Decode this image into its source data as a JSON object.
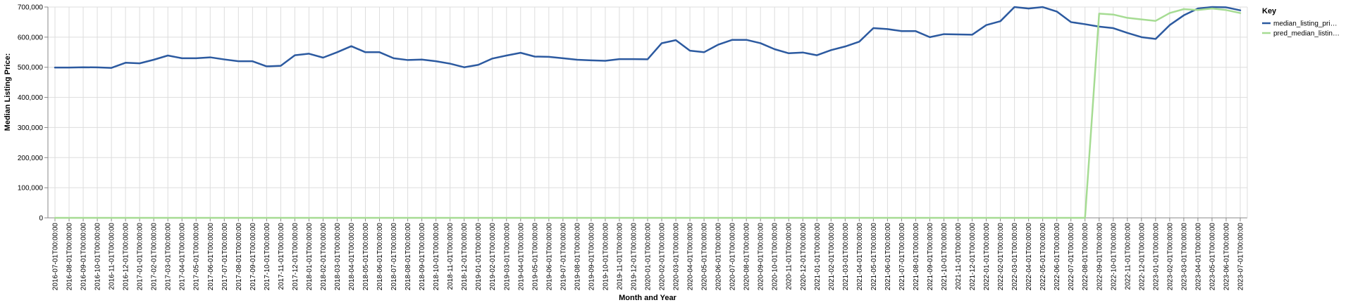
{
  "chart_data": {
    "type": "line",
    "xlabel": "Month and Year",
    "ylabel": "Median Listing Price:",
    "ylim": [
      0,
      700000
    ],
    "y_ticks": [
      "0",
      "100,000",
      "200,000",
      "300,000",
      "400,000",
      "500,000",
      "600,000",
      "700,000"
    ],
    "y_tick_values": [
      0,
      100000,
      200000,
      300000,
      400000,
      500000,
      600000,
      700000
    ],
    "grid": true,
    "legend": {
      "title": "Key",
      "placement": "top-right",
      "items": [
        {
          "label": "median_listing_pri…",
          "color": "#2c5aa0"
        },
        {
          "label": "pred_median_listin…",
          "color": "#a6dc93"
        }
      ]
    },
    "x": [
      "2016-07-01T00:00:00",
      "2016-08-01T00:00:00",
      "2016-09-01T00:00:00",
      "2016-10-01T00:00:00",
      "2016-11-01T00:00:00",
      "2016-12-01T00:00:00",
      "2017-01-01T00:00:00",
      "2017-02-01T00:00:00",
      "2017-03-01T00:00:00",
      "2017-04-01T00:00:00",
      "2017-05-01T00:00:00",
      "2017-06-01T00:00:00",
      "2017-07-01T00:00:00",
      "2017-08-01T00:00:00",
      "2017-09-01T00:00:00",
      "2017-10-01T00:00:00",
      "2017-11-01T00:00:00",
      "2017-12-01T00:00:00",
      "2018-01-01T00:00:00",
      "2018-02-01T00:00:00",
      "2018-03-01T00:00:00",
      "2018-04-01T00:00:00",
      "2018-05-01T00:00:00",
      "2018-06-01T00:00:00",
      "2018-07-01T00:00:00",
      "2018-08-01T00:00:00",
      "2018-09-01T00:00:00",
      "2018-10-01T00:00:00",
      "2018-11-01T00:00:00",
      "2018-12-01T00:00:00",
      "2019-01-01T00:00:00",
      "2019-02-01T00:00:00",
      "2019-03-01T00:00:00",
      "2019-04-01T00:00:00",
      "2019-05-01T00:00:00",
      "2019-06-01T00:00:00",
      "2019-07-01T00:00:00",
      "2019-08-01T00:00:00",
      "2019-09-01T00:00:00",
      "2019-10-01T00:00:00",
      "2019-11-01T00:00:00",
      "2019-12-01T00:00:00",
      "2020-01-01T00:00:00",
      "2020-02-01T00:00:00",
      "2020-03-01T00:00:00",
      "2020-04-01T00:00:00",
      "2020-05-01T00:00:00",
      "2020-06-01T00:00:00",
      "2020-07-01T00:00:00",
      "2020-08-01T00:00:00",
      "2020-09-01T00:00:00",
      "2020-10-01T00:00:00",
      "2020-11-01T00:00:00",
      "2020-12-01T00:00:00",
      "2021-01-01T00:00:00",
      "2021-02-01T00:00:00",
      "2021-03-01T00:00:00",
      "2021-04-01T00:00:00",
      "2021-05-01T00:00:00",
      "2021-06-01T00:00:00",
      "2021-07-01T00:00:00",
      "2021-08-01T00:00:00",
      "2021-09-01T00:00:00",
      "2021-10-01T00:00:00",
      "2021-11-01T00:00:00",
      "2021-12-01T00:00:00",
      "2022-01-01T00:00:00",
      "2022-02-01T00:00:00",
      "2022-03-01T00:00:00",
      "2022-04-01T00:00:00",
      "2022-05-01T00:00:00",
      "2022-06-01T00:00:00",
      "2022-07-01T00:00:00",
      "2022-08-01T00:00:00",
      "2022-09-01T00:00:00",
      "2022-10-01T00:00:00",
      "2022-11-01T00:00:00",
      "2022-12-01T00:00:00",
      "2023-01-01T00:00:00",
      "2023-02-01T00:00:00",
      "2023-03-01T00:00:00",
      "2023-04-01T00:00:00",
      "2023-05-01T00:00:00",
      "2023-06-01T00:00:00",
      "2023-07-01T00:00:00"
    ],
    "series": [
      {
        "name": "median_listing_pri…",
        "color": "#2c5aa0",
        "values": [
          499000,
          499000,
          500000,
          499500,
          498000,
          515000,
          513000,
          525000,
          539000,
          530000,
          530000,
          533000,
          526000,
          520000,
          520000,
          503000,
          505000,
          539900,
          545000,
          532000,
          549900,
          570000,
          550000,
          550000,
          530000,
          524000,
          525500,
          520000,
          512000,
          500000,
          508000,
          529000,
          539000,
          548000,
          535500,
          534700,
          530000,
          524900,
          522900,
          521500,
          527000,
          527000,
          526500,
          579900,
          590000,
          555000,
          550000,
          575000,
          591000,
          591000,
          580000,
          560000,
          546500,
          549000,
          539900,
          557000,
          569000,
          585000,
          630000,
          626800,
          620000,
          620000,
          600000,
          610000,
          609000,
          608000,
          640000,
          652900,
          699900,
          695000,
          699900,
          685000,
          650000,
          643000,
          635000,
          629900,
          614000,
          600000,
          594000,
          640000,
          672500,
          695000,
          700000,
          699000,
          689000
        ]
      },
      {
        "name": "pred_median_listin…",
        "color": "#a6dc93",
        "values": [
          0,
          0,
          0,
          0,
          0,
          0,
          0,
          0,
          0,
          0,
          0,
          0,
          0,
          0,
          0,
          0,
          0,
          0,
          0,
          0,
          0,
          0,
          0,
          0,
          0,
          0,
          0,
          0,
          0,
          0,
          0,
          0,
          0,
          0,
          0,
          0,
          0,
          0,
          0,
          0,
          0,
          0,
          0,
          0,
          0,
          0,
          0,
          0,
          0,
          0,
          0,
          0,
          0,
          0,
          0,
          0,
          0,
          0,
          0,
          0,
          0,
          0,
          0,
          0,
          0,
          0,
          0,
          0,
          0,
          0,
          0,
          0,
          0,
          0,
          678000,
          675000,
          664000,
          659000,
          654000,
          680000,
          693000,
          690000,
          695000,
          690000,
          680000
        ]
      }
    ]
  }
}
